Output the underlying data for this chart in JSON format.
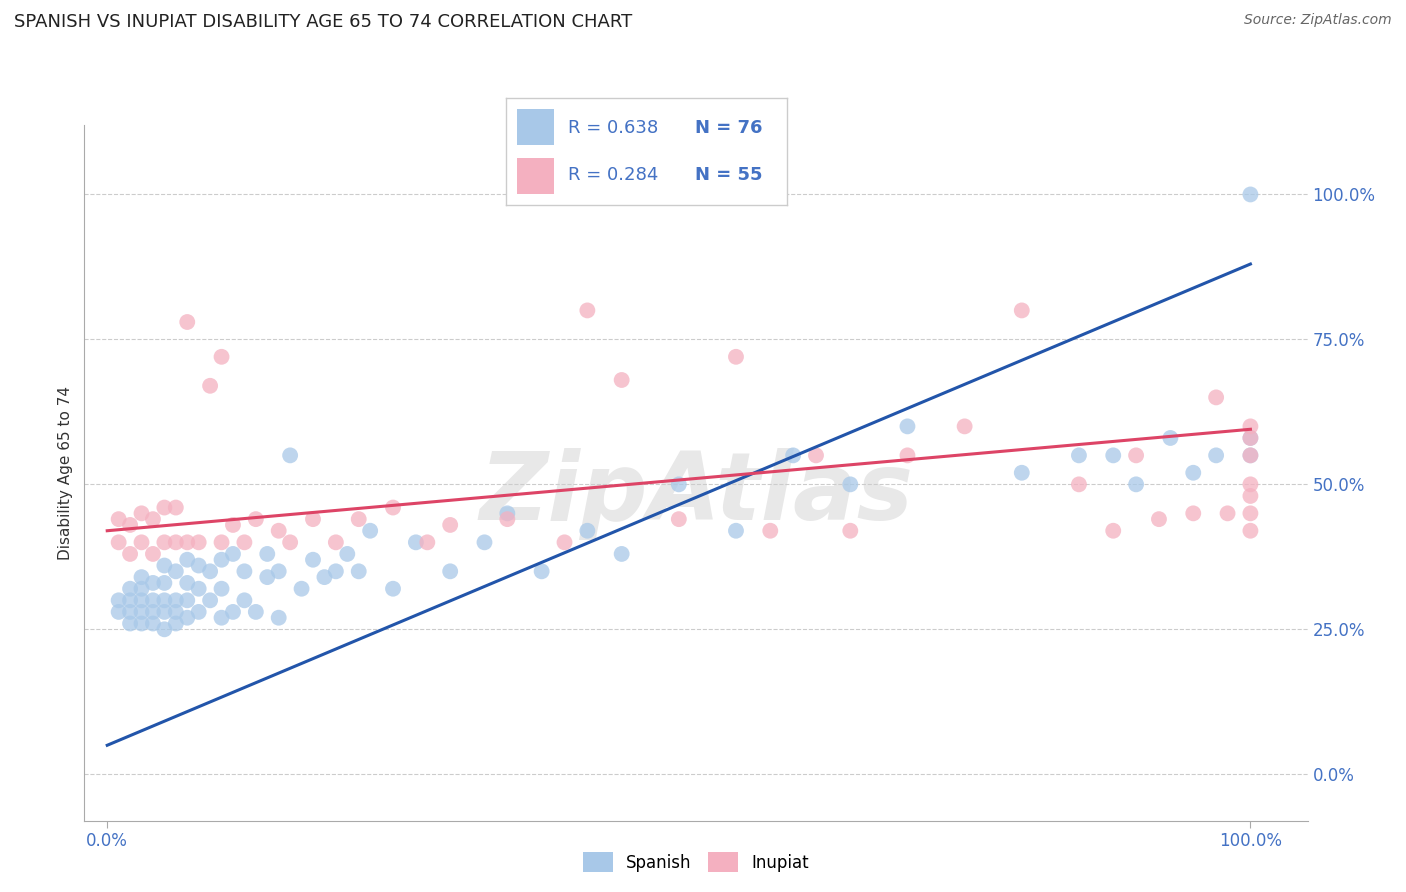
{
  "title": "SPANISH VS INUPIAT DISABILITY AGE 65 TO 74 CORRELATION CHART",
  "source": "Source: ZipAtlas.com",
  "ylabel": "Disability Age 65 to 74",
  "blue_color": "#a8c8e8",
  "pink_color": "#f4b0c0",
  "blue_line_color": "#2255aa",
  "pink_line_color": "#dd4466",
  "legend_blue_r": "R = 0.638",
  "legend_blue_n": "N = 76",
  "legend_pink_r": "R = 0.284",
  "legend_pink_n": "N = 55",
  "blue_trendline": [
    0.0,
    0.05,
    1.0,
    0.88
  ],
  "pink_trendline": [
    0.0,
    0.42,
    1.0,
    0.595
  ],
  "xlim": [
    -0.02,
    1.05
  ],
  "ylim": [
    -0.08,
    1.12
  ],
  "xticks": [
    0.0,
    1.0
  ],
  "xtick_labels": [
    "0.0%",
    "100.0%"
  ],
  "yticks": [
    0.0,
    0.25,
    0.5,
    0.75,
    1.0
  ],
  "ytick_labels": [
    "0.0%",
    "25.0%",
    "50.0%",
    "75.0%",
    "100.0%"
  ],
  "grid_color": "#cccccc",
  "watermark_text": "ZipAtlas",
  "blue_x": [
    0.01,
    0.01,
    0.02,
    0.02,
    0.02,
    0.02,
    0.03,
    0.03,
    0.03,
    0.03,
    0.03,
    0.04,
    0.04,
    0.04,
    0.04,
    0.05,
    0.05,
    0.05,
    0.05,
    0.05,
    0.06,
    0.06,
    0.06,
    0.06,
    0.07,
    0.07,
    0.07,
    0.07,
    0.08,
    0.08,
    0.08,
    0.09,
    0.09,
    0.1,
    0.1,
    0.1,
    0.11,
    0.11,
    0.12,
    0.12,
    0.13,
    0.14,
    0.14,
    0.15,
    0.15,
    0.16,
    0.17,
    0.18,
    0.19,
    0.2,
    0.21,
    0.22,
    0.23,
    0.25,
    0.27,
    0.3,
    0.33,
    0.35,
    0.38,
    0.42,
    0.45,
    0.5,
    0.55,
    0.6,
    0.65,
    0.7,
    0.8,
    0.85,
    0.88,
    0.9,
    0.93,
    0.95,
    0.97,
    1.0,
    1.0,
    1.0
  ],
  "blue_y": [
    0.28,
    0.3,
    0.26,
    0.28,
    0.3,
    0.32,
    0.26,
    0.28,
    0.3,
    0.32,
    0.34,
    0.26,
    0.28,
    0.3,
    0.33,
    0.25,
    0.28,
    0.3,
    0.33,
    0.36,
    0.26,
    0.28,
    0.3,
    0.35,
    0.27,
    0.3,
    0.33,
    0.37,
    0.28,
    0.32,
    0.36,
    0.3,
    0.35,
    0.27,
    0.32,
    0.37,
    0.28,
    0.38,
    0.3,
    0.35,
    0.28,
    0.34,
    0.38,
    0.27,
    0.35,
    0.55,
    0.32,
    0.37,
    0.34,
    0.35,
    0.38,
    0.35,
    0.42,
    0.32,
    0.4,
    0.35,
    0.4,
    0.45,
    0.35,
    0.42,
    0.38,
    0.5,
    0.42,
    0.55,
    0.5,
    0.6,
    0.52,
    0.55,
    0.55,
    0.5,
    0.58,
    0.52,
    0.55,
    0.55,
    0.58,
    1.0
  ],
  "pink_x": [
    0.01,
    0.01,
    0.02,
    0.02,
    0.03,
    0.03,
    0.04,
    0.04,
    0.05,
    0.05,
    0.06,
    0.06,
    0.07,
    0.07,
    0.08,
    0.09,
    0.1,
    0.1,
    0.11,
    0.12,
    0.13,
    0.15,
    0.16,
    0.18,
    0.2,
    0.22,
    0.25,
    0.28,
    0.3,
    0.35,
    0.4,
    0.42,
    0.45,
    0.5,
    0.55,
    0.58,
    0.62,
    0.65,
    0.7,
    0.75,
    0.8,
    0.85,
    0.88,
    0.9,
    0.92,
    0.95,
    0.97,
    0.98,
    1.0,
    1.0,
    1.0,
    1.0,
    1.0,
    1.0,
    1.0
  ],
  "pink_y": [
    0.4,
    0.44,
    0.38,
    0.43,
    0.4,
    0.45,
    0.38,
    0.44,
    0.4,
    0.46,
    0.4,
    0.46,
    0.4,
    0.78,
    0.4,
    0.67,
    0.4,
    0.72,
    0.43,
    0.4,
    0.44,
    0.42,
    0.4,
    0.44,
    0.4,
    0.44,
    0.46,
    0.4,
    0.43,
    0.44,
    0.4,
    0.8,
    0.68,
    0.44,
    0.72,
    0.42,
    0.55,
    0.42,
    0.55,
    0.6,
    0.8,
    0.5,
    0.42,
    0.55,
    0.44,
    0.45,
    0.65,
    0.45,
    0.42,
    0.45,
    0.48,
    0.55,
    0.58,
    0.6,
    0.5
  ]
}
